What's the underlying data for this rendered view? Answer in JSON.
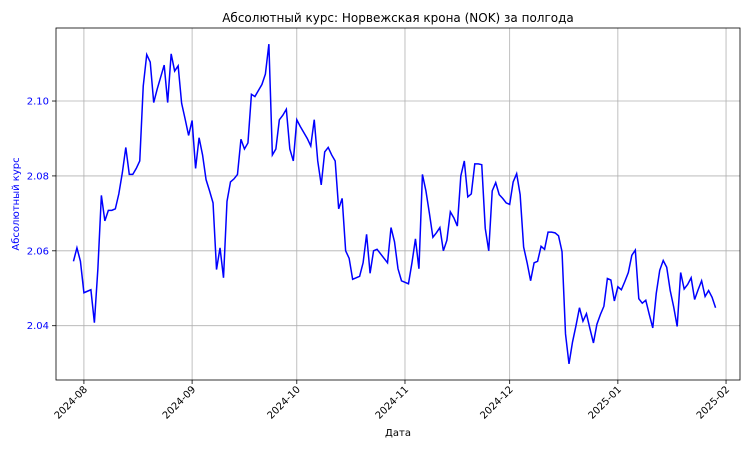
{
  "chart_data": {
    "type": "line",
    "title": "Абсолютный курс: Норвежская крона (NOK) за полгода",
    "xlabel": "Дата",
    "ylabel": "Абсолютный курс",
    "x_range": [
      "2024-07-24",
      "2025-02-05"
    ],
    "ylim": [
      2.0255,
      2.1195
    ],
    "grid": true,
    "line_color": "#0000ff",
    "ylabel_color": "#0000ff",
    "x_ticks": [
      "2024-08",
      "2024-09",
      "2024-10",
      "2024-11",
      "2024-12",
      "2025-01",
      "2025-02"
    ],
    "x_tick_dates": [
      "2024-08-01",
      "2024-09-01",
      "2024-10-01",
      "2024-11-01",
      "2024-12-01",
      "2025-01-01",
      "2025-02-01"
    ],
    "y_ticks": [
      "2.04",
      "2.06",
      "2.08",
      "2.10"
    ],
    "y_tick_values": [
      2.04,
      2.06,
      2.08,
      2.1
    ],
    "series": [
      {
        "x": [
          "2024-07-29",
          "2024-07-30",
          "2024-07-31",
          "2024-08-01",
          "2024-08-02",
          "2024-08-03",
          "2024-08-04",
          "2024-08-05",
          "2024-08-06",
          "2024-08-07",
          "2024-08-08",
          "2024-08-09",
          "2024-08-10",
          "2024-08-11",
          "2024-08-12",
          "2024-08-13",
          "2024-08-14",
          "2024-08-15",
          "2024-08-16",
          "2024-08-17",
          "2024-08-18",
          "2024-08-19",
          "2024-08-20",
          "2024-08-21",
          "2024-08-22",
          "2024-08-23",
          "2024-08-24",
          "2024-08-25",
          "2024-08-26",
          "2024-08-27",
          "2024-08-28",
          "2024-08-29",
          "2024-08-30",
          "2024-08-31",
          "2024-09-01",
          "2024-09-02",
          "2024-09-03",
          "2024-09-04",
          "2024-09-05",
          "2024-09-06",
          "2024-09-07",
          "2024-09-08",
          "2024-09-09",
          "2024-09-10",
          "2024-09-11",
          "2024-09-12",
          "2024-09-13",
          "2024-09-14",
          "2024-09-15",
          "2024-09-16",
          "2024-09-17",
          "2024-09-18",
          "2024-09-19",
          "2024-09-20",
          "2024-09-21",
          "2024-09-22",
          "2024-09-23",
          "2024-09-24",
          "2024-09-25",
          "2024-09-26",
          "2024-09-27",
          "2024-09-28",
          "2024-09-29",
          "2024-09-30",
          "2024-10-01",
          "2024-10-02",
          "2024-10-03",
          "2024-10-04",
          "2024-10-05",
          "2024-10-06",
          "2024-10-07",
          "2024-10-08",
          "2024-10-09",
          "2024-10-10",
          "2024-10-11",
          "2024-10-12",
          "2024-10-13",
          "2024-10-14",
          "2024-10-15",
          "2024-10-16",
          "2024-10-17",
          "2024-10-18",
          "2024-10-19",
          "2024-10-20",
          "2024-10-21",
          "2024-10-22",
          "2024-10-23",
          "2024-10-24",
          "2024-10-25",
          "2024-10-26",
          "2024-10-27",
          "2024-10-28",
          "2024-10-29",
          "2024-10-30",
          "2024-10-31",
          "2024-11-01",
          "2024-11-02",
          "2024-11-03",
          "2024-11-04",
          "2024-11-05",
          "2024-11-06",
          "2024-11-07",
          "2024-11-08",
          "2024-11-09",
          "2024-11-10",
          "2024-11-11",
          "2024-11-12",
          "2024-11-13",
          "2024-11-14",
          "2024-11-15",
          "2024-11-16",
          "2024-11-17",
          "2024-11-18",
          "2024-11-19",
          "2024-11-20",
          "2024-11-21",
          "2024-11-22",
          "2024-11-23",
          "2024-11-24",
          "2024-11-25",
          "2024-11-26",
          "2024-11-27",
          "2024-11-28",
          "2024-11-29",
          "2024-11-30",
          "2024-12-01",
          "2024-12-02",
          "2024-12-03",
          "2024-12-04",
          "2024-12-05",
          "2024-12-06",
          "2024-12-07",
          "2024-12-08",
          "2024-12-09",
          "2024-12-10",
          "2024-12-11",
          "2024-12-12",
          "2024-12-13",
          "2024-12-14",
          "2024-12-15",
          "2024-12-16",
          "2024-12-17",
          "2024-12-18",
          "2024-12-19",
          "2024-12-20",
          "2024-12-21",
          "2024-12-22",
          "2024-12-23",
          "2024-12-24",
          "2024-12-25",
          "2024-12-26",
          "2024-12-27",
          "2024-12-28",
          "2024-12-29",
          "2024-12-30",
          "2024-12-31",
          "2025-01-01",
          "2025-01-02",
          "2025-01-03",
          "2025-01-04",
          "2025-01-05",
          "2025-01-06",
          "2025-01-07",
          "2025-01-08",
          "2025-01-09",
          "2025-01-10",
          "2025-01-11",
          "2025-01-12",
          "2025-01-13",
          "2025-01-14",
          "2025-01-15",
          "2025-01-16",
          "2025-01-17",
          "2025-01-18",
          "2025-01-19",
          "2025-01-20",
          "2025-01-21",
          "2025-01-22",
          "2025-01-23",
          "2025-01-24",
          "2025-01-25",
          "2025-01-26",
          "2025-01-27",
          "2025-01-28",
          "2025-01-29"
        ],
        "y": [
          2.0572,
          2.0608,
          2.0572,
          2.0488,
          2.0492,
          2.0496,
          2.0408,
          2.0552,
          2.0748,
          2.068,
          2.0708,
          2.0708,
          2.0712,
          2.0752,
          2.0808,
          2.0876,
          2.0804,
          2.0804,
          2.082,
          2.084,
          2.104,
          2.1124,
          2.1104,
          2.0996,
          2.1032,
          2.1064,
          2.1096,
          2.0996,
          2.1126,
          2.108,
          2.1094,
          2.0994,
          2.0952,
          2.0908,
          2.0948,
          2.082,
          2.0902,
          2.0856,
          2.079,
          2.076,
          2.0728,
          2.055,
          2.0608,
          2.0528,
          2.0732,
          2.0784,
          2.0792,
          2.0804,
          2.0898,
          2.0872,
          2.0888,
          2.1018,
          2.1012,
          2.1028,
          2.1044,
          2.1072,
          2.1152,
          2.0856,
          2.0872,
          2.095,
          2.0962,
          2.0978,
          2.0872,
          2.084,
          2.095,
          2.0932,
          2.0916,
          2.09,
          2.088,
          2.095,
          2.084,
          2.0776,
          2.0864,
          2.0876,
          2.0856,
          2.084,
          2.0712,
          2.074,
          2.06,
          2.058,
          2.0524,
          2.0528,
          2.0532,
          2.0568,
          2.0644,
          2.054,
          2.06,
          2.0604,
          2.0592,
          2.058,
          2.0568,
          2.0662,
          2.0624,
          2.0552,
          2.052,
          2.0516,
          2.0512,
          2.0568,
          2.0632,
          2.0552,
          2.0804,
          2.076,
          2.07,
          2.0636,
          2.0648,
          2.0662,
          2.06,
          2.0628,
          2.0704,
          2.0688,
          2.0666,
          2.08,
          2.084,
          2.0744,
          2.0752,
          2.0832,
          2.0832,
          2.083,
          2.066,
          2.06,
          2.076,
          2.0782,
          2.075,
          2.074,
          2.0728,
          2.0724,
          2.0784,
          2.0806,
          2.075,
          2.061,
          2.0568,
          2.052,
          2.0568,
          2.0572,
          2.0612,
          2.0604,
          2.065,
          2.065,
          2.0648,
          2.064,
          2.0598,
          2.0378,
          2.0298,
          2.0356,
          2.04,
          2.0448,
          2.0412,
          2.0432,
          2.0392,
          2.0354,
          2.0404,
          2.043,
          2.0452,
          2.0526,
          2.0522,
          2.0466,
          2.0504,
          2.0496,
          2.0518,
          2.0542,
          2.0588,
          2.0602,
          2.0472,
          2.046,
          2.0468,
          2.043,
          2.0394,
          2.0486,
          2.0548,
          2.0574,
          2.0556,
          2.0494,
          2.045,
          2.0398,
          2.0542,
          2.0498,
          2.051,
          2.0528,
          2.047,
          2.0496,
          2.052,
          2.0478,
          2.0494,
          2.0476,
          2.0448
        ]
      }
    ]
  }
}
